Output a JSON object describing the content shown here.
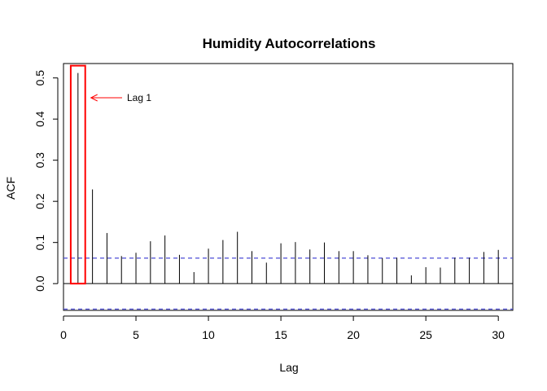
{
  "chart_data": {
    "type": "bar",
    "title": "Humidity Autocorrelations",
    "xlabel": "Lag",
    "ylabel": "ACF",
    "xlim": [
      0,
      31
    ],
    "ylim": [
      -0.065,
      0.535
    ],
    "x_ticks": [
      0,
      5,
      10,
      15,
      20,
      25,
      30
    ],
    "y_ticks": [
      0.0,
      0.1,
      0.2,
      0.3,
      0.4,
      0.5
    ],
    "x_tick_labels": [
      "0",
      "5",
      "10",
      "15",
      "20",
      "25",
      "30"
    ],
    "y_tick_labels": [
      "0.0",
      "0.1",
      "0.2",
      "0.3",
      "0.4",
      "0.5"
    ],
    "lags": [
      1,
      2,
      3,
      4,
      5,
      6,
      7,
      8,
      9,
      10,
      11,
      12,
      13,
      14,
      15,
      16,
      17,
      18,
      19,
      20,
      21,
      22,
      23,
      24,
      25,
      26,
      27,
      28,
      29,
      30
    ],
    "values": [
      0.512,
      0.229,
      0.123,
      0.067,
      0.075,
      0.103,
      0.117,
      0.07,
      0.028,
      0.085,
      0.106,
      0.126,
      0.079,
      0.051,
      0.098,
      0.101,
      0.083,
      0.1,
      0.079,
      0.079,
      0.069,
      0.062,
      0.063,
      0.02,
      0.04,
      0.039,
      0.063,
      0.063,
      0.077,
      0.082
    ],
    "confidence_band": 0.062,
    "grid": false,
    "colors": {
      "bars": "#000000",
      "confidence_band": "#4b4bd6",
      "highlight": "#ff0000"
    },
    "annotation": {
      "text": "Lag 1",
      "highlight_lag": 1
    }
  }
}
